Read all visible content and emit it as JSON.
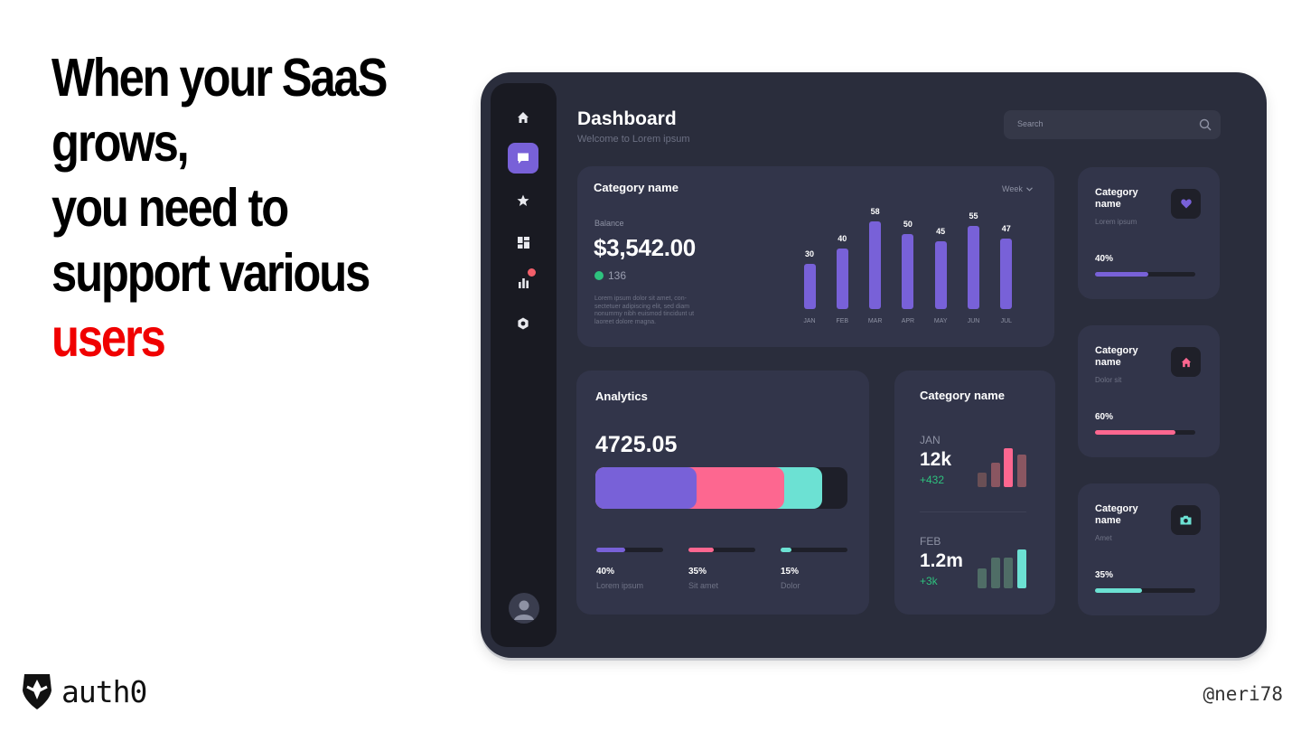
{
  "slide": {
    "headline_lines": [
      "When your SaaS",
      "grows,",
      "you need to",
      "support various"
    ],
    "headline_accent": "users",
    "accent_color": "#f00000",
    "brand_name": "auth0",
    "author_handle": "@neri78"
  },
  "dashboard": {
    "title": "Dashboard",
    "subtitle": "Welcome to Lorem ipsum",
    "search": {
      "placeholder": "Search"
    },
    "sidebar": {
      "items": [
        {
          "icon": "home-icon"
        },
        {
          "icon": "chat-icon",
          "active": true
        },
        {
          "icon": "star-icon"
        },
        {
          "icon": "grid-icon"
        },
        {
          "icon": "bar-chart-icon",
          "badge": true
        },
        {
          "icon": "hexagon-icon"
        }
      ],
      "avatar_icon": "user-avatar-icon"
    },
    "category_card": {
      "title": "Category name",
      "period": "Week",
      "balance_label": "Balance",
      "balance_value": "$3,542.00",
      "balance_change": "136",
      "description": "Lorem ipsum dolor sit amet, con-sectetuer adipiscing elit, sed diam nonummy nibh euismod tincidunt ut laoreet dolore magna."
    },
    "chart_data": {
      "type": "bar",
      "categories": [
        "JAN",
        "FEB",
        "MAR",
        "APR",
        "MAY",
        "JUN",
        "JUL"
      ],
      "values": [
        30,
        40,
        58,
        50,
        45,
        55,
        47
      ],
      "ylim": [
        0,
        60
      ],
      "color": "#7861d8"
    },
    "analytics": {
      "title": "Analytics",
      "value": "4725.05",
      "segments": [
        {
          "label": "Lorem ipsum",
          "percent": 40,
          "percent_text": "40%",
          "color": "#7861d8"
        },
        {
          "label": "Sit amet",
          "percent": 35,
          "percent_text": "35%",
          "color": "#fd6790"
        },
        {
          "label": "Dolor",
          "percent": 15,
          "percent_text": "15%",
          "color": "#6ce1d3"
        }
      ]
    },
    "months_card": {
      "title": "Category name",
      "entries": [
        {
          "month": "JAN",
          "value": "12k",
          "delta": "+432",
          "bar_levels": [
            0.35,
            0.6,
            0.95,
            0.8
          ],
          "bar_colors": [
            "#6a4f55",
            "#8a5661",
            "#fd6790",
            "#8a5661"
          ]
        },
        {
          "month": "FEB",
          "value": "1.2m",
          "delta": "+3k",
          "bar_levels": [
            0.5,
            0.75,
            0.75,
            0.95
          ],
          "bar_colors": [
            "#4f6d66",
            "#4f6d66",
            "#4f6d66",
            "#6ce1d3"
          ]
        }
      ]
    },
    "side_cards": [
      {
        "title": "Category name",
        "subtitle": "Lorem ipsum",
        "percent": 40,
        "percent_text": "40%",
        "icon": "heart-icon",
        "color": "#7861d8"
      },
      {
        "title": "Category name",
        "subtitle": "Dolor sit",
        "percent": 60,
        "percent_text": "60%",
        "icon": "home-icon",
        "color": "#fd6790"
      },
      {
        "title": "Category name",
        "subtitle": "Amet",
        "percent": 35,
        "percent_text": "35%",
        "icon": "camera-icon",
        "color": "#6ce1d3"
      }
    ]
  }
}
